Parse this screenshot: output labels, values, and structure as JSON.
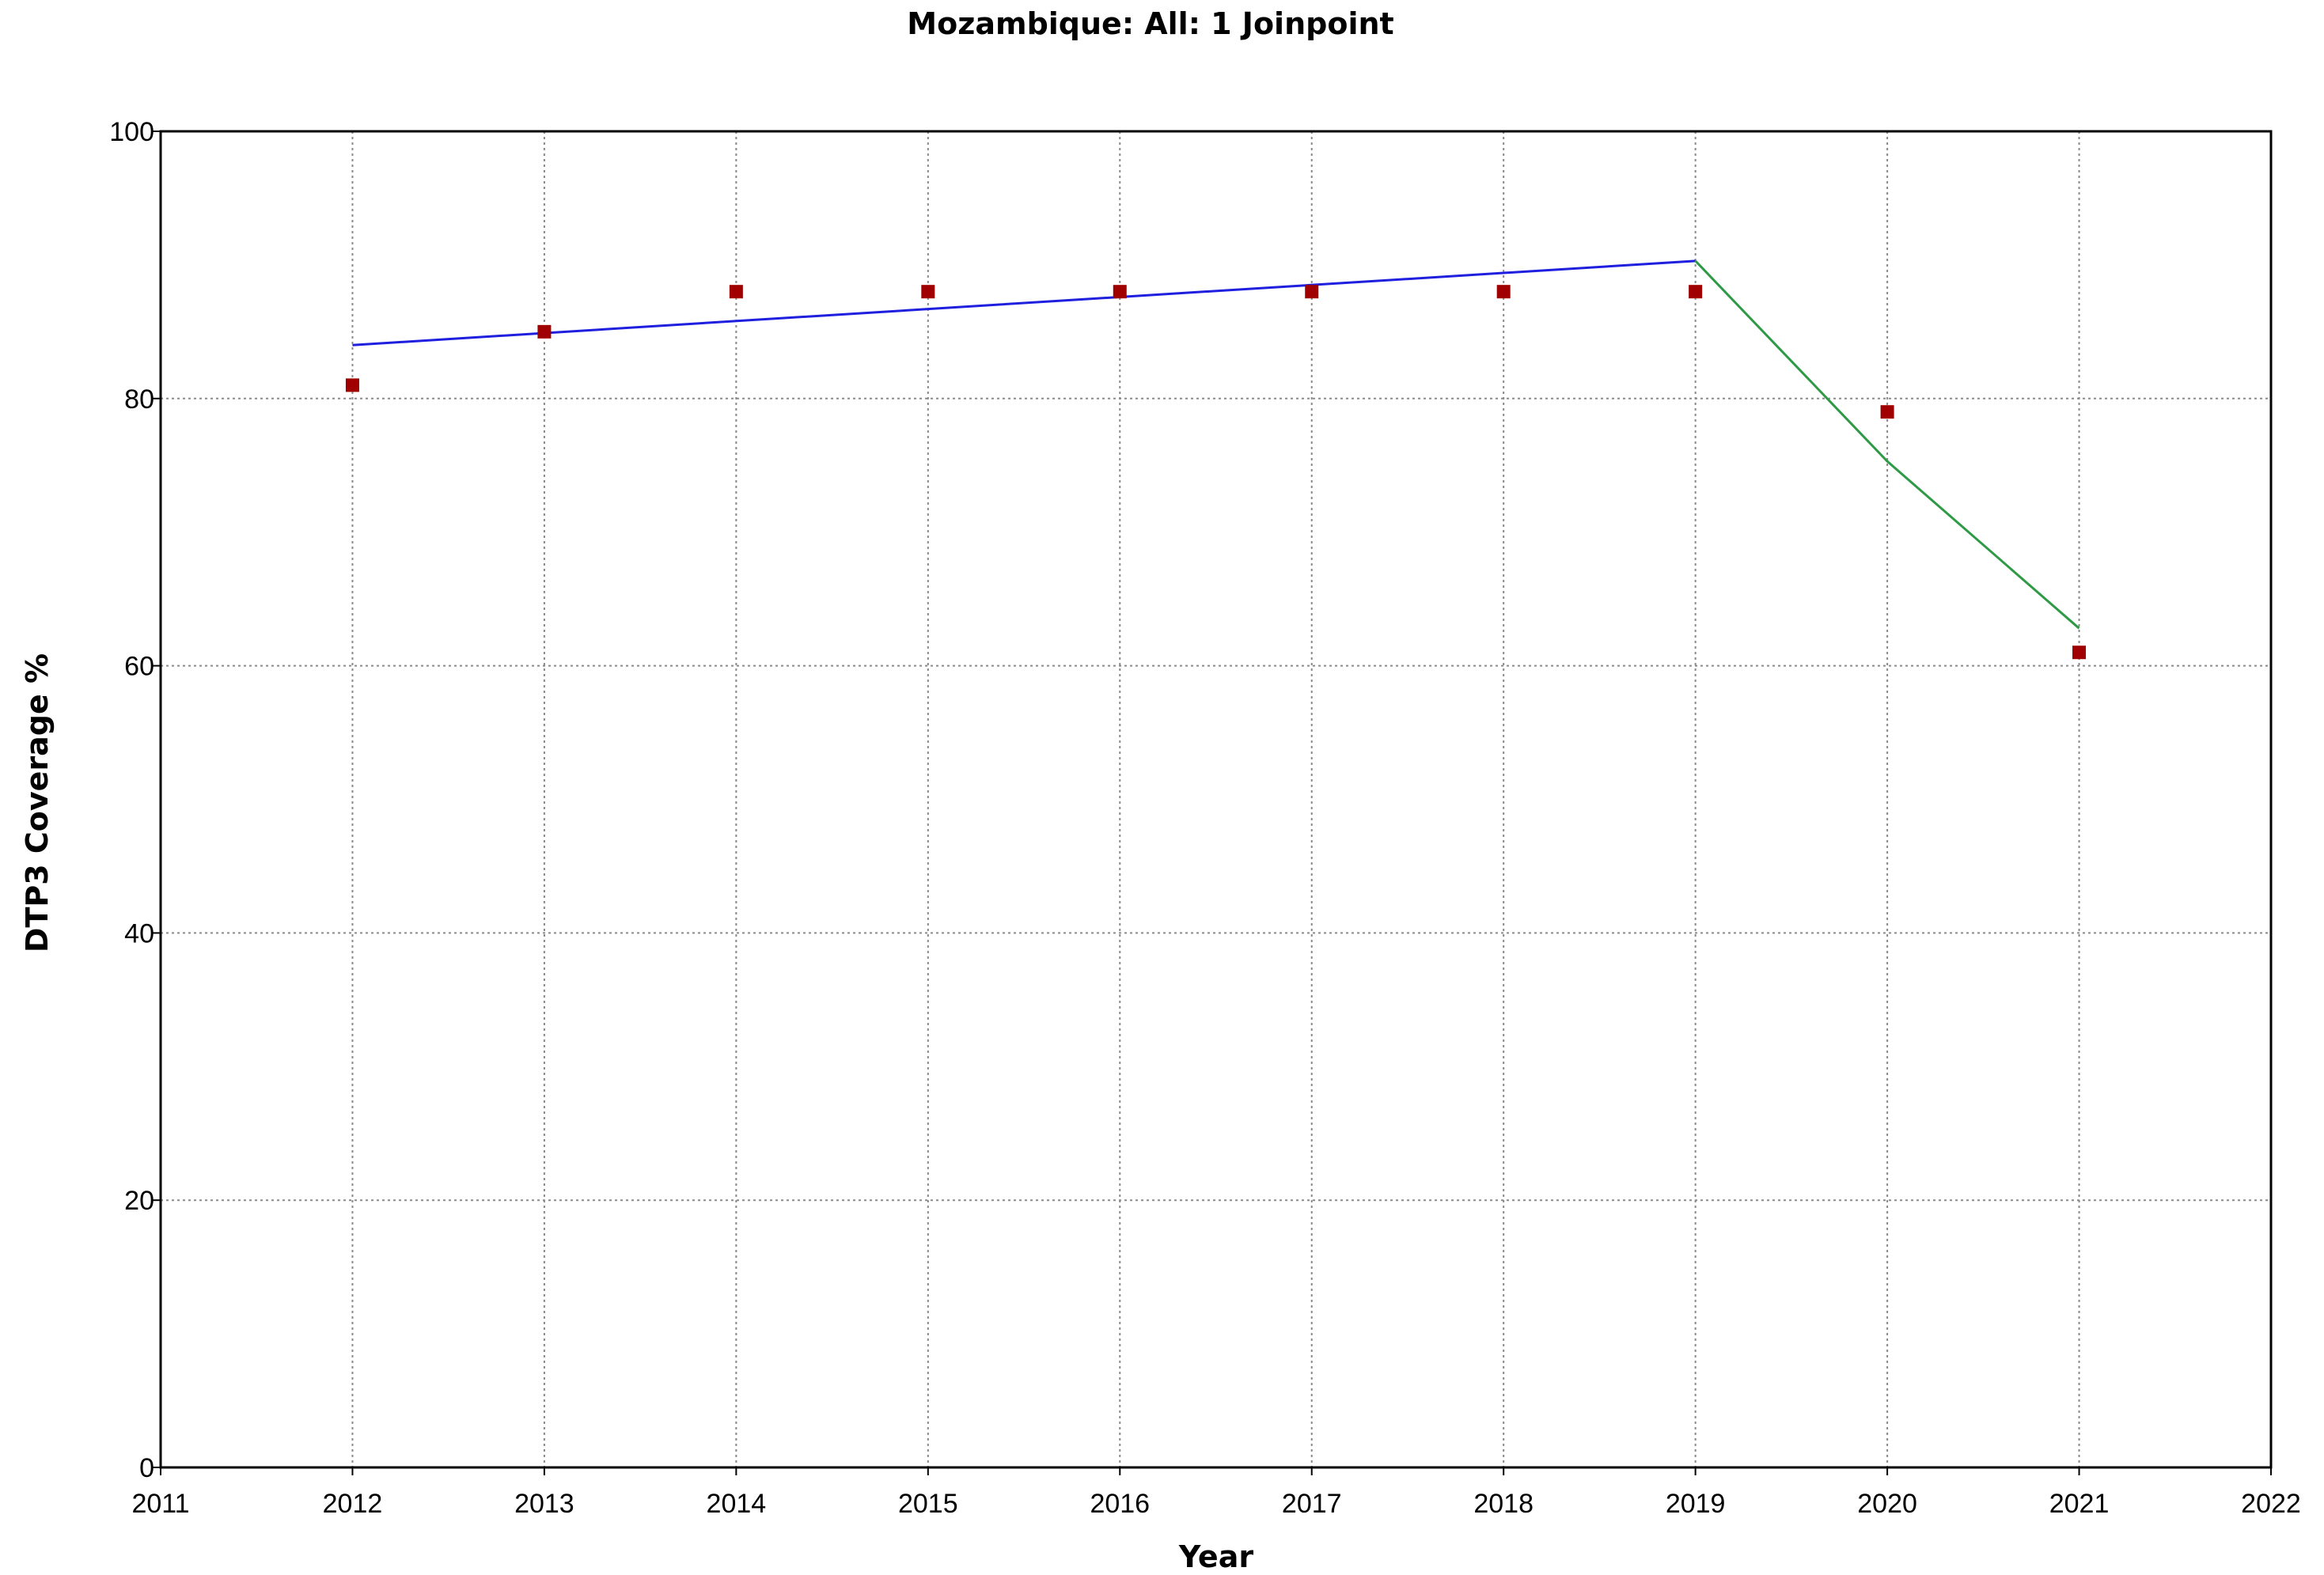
{
  "chart_data": {
    "type": "scatter",
    "title": "Mozambique: All: 1 Joinpoint",
    "xlabel": "Year",
    "ylabel": "DTP3 Coverage %",
    "xlim": [
      2011,
      2022
    ],
    "ylim": [
      0,
      100
    ],
    "x_ticks": [
      "2011",
      "2012",
      "2013",
      "2014",
      "2015",
      "2016",
      "2017",
      "2018",
      "2019",
      "2020",
      "2021",
      "2022"
    ],
    "y_ticks": [
      "0",
      "20",
      "40",
      "60",
      "80",
      "100"
    ],
    "grid": true,
    "observed": {
      "x": [
        2012,
        2013,
        2014,
        2015,
        2016,
        2017,
        2018,
        2019,
        2020,
        2021
      ],
      "y": [
        81,
        85,
        88,
        88,
        88,
        88,
        88,
        88,
        79,
        61
      ]
    },
    "segments": [
      {
        "x": [
          2012,
          2019
        ],
        "y": [
          84.0,
          90.3
        ]
      },
      {
        "x": [
          2019,
          2020,
          2021
        ],
        "y": [
          90.3,
          75.3,
          62.8
        ]
      }
    ],
    "colors": {
      "points": "#a00000",
      "segment1": "#1f1fe0",
      "segment2": "#2e9a46",
      "grid": "#8a8a8a",
      "frame": "#000000"
    }
  }
}
